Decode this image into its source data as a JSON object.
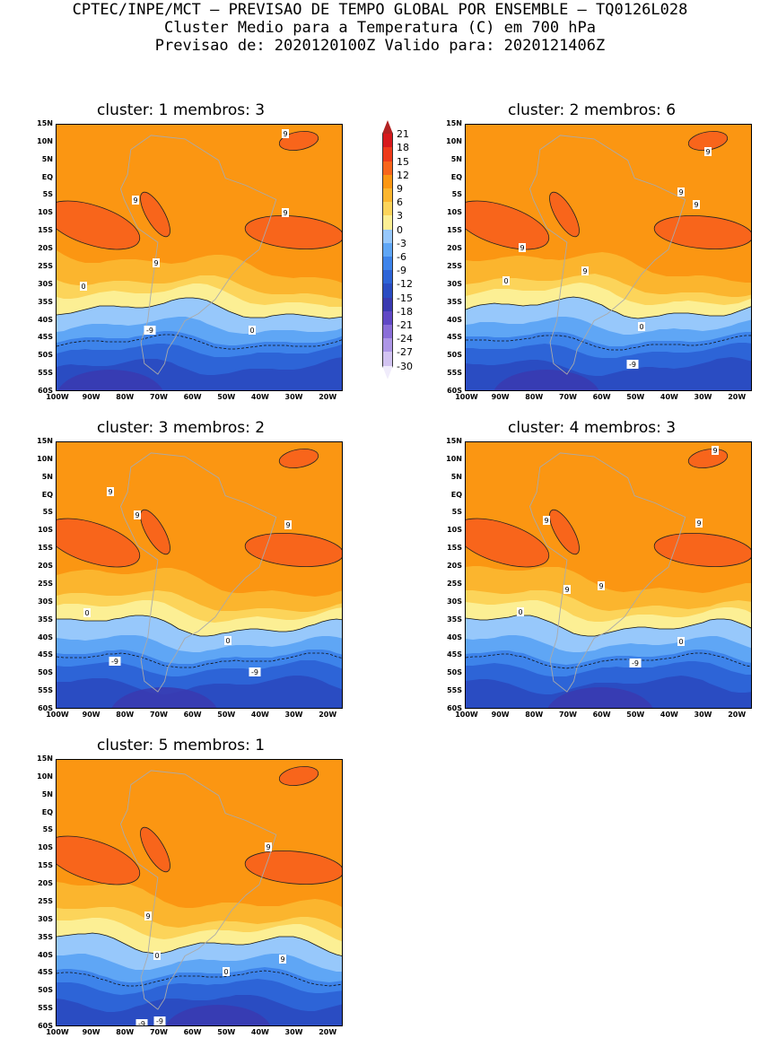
{
  "header": {
    "line1": "CPTEC/INPE/MCT — PREVISAO DE TEMPO GLOBAL POR ENSEMBLE — TQ0126L028",
    "line2": "Cluster Medio para a Temperatura (C) em 700 hPa",
    "line3": "Previsao de: 2020120100Z   Valido para: 2020121406Z"
  },
  "axes": {
    "lat_labels": [
      "15N",
      "10N",
      "5N",
      "EQ",
      "5S",
      "10S",
      "15S",
      "20S",
      "25S",
      "30S",
      "35S",
      "40S",
      "45S",
      "50S",
      "55S",
      "60S"
    ],
    "lon_labels": [
      "100W",
      "90W",
      "80W",
      "70W",
      "60W",
      "50W",
      "40W",
      "30W",
      "20W"
    ]
  },
  "colorbar": {
    "labels": [
      "21",
      "18",
      "15",
      "12",
      "9",
      "6",
      "3",
      "0",
      "-3",
      "-6",
      "-9",
      "-12",
      "-15",
      "-18",
      "-21",
      "-24",
      "-27",
      "-30"
    ],
    "colors": [
      "#b22222",
      "#d7191c",
      "#ee3a1a",
      "#f8651b",
      "#fb9612",
      "#fbb52e",
      "#fcd45a",
      "#fcef94",
      "#97c8fb",
      "#5fa6f5",
      "#3d83ea",
      "#2d64d7",
      "#2a4cc2",
      "#3a3ab0",
      "#6048c5",
      "#8a6ed8",
      "#ad96e6",
      "#d2c3f1",
      "#f0ecfb"
    ]
  },
  "panels": [
    {
      "title": "cluster: 1   membros: 3",
      "labels": [
        "9",
        "9",
        "9",
        "9",
        "0",
        "0",
        "-9"
      ]
    },
    {
      "title": "cluster: 2   membros: 6",
      "labels": [
        "9",
        "9",
        "9",
        "9",
        "9",
        "0",
        "0",
        "-9"
      ]
    },
    {
      "title": "cluster: 3   membros: 2",
      "labels": [
        "9",
        "9",
        "9",
        "0",
        "0",
        "-9",
        "-9"
      ]
    },
    {
      "title": "cluster: 4   membros: 3",
      "labels": [
        "9",
        "9",
        "9",
        "9",
        "9",
        "0",
        "0",
        "-9"
      ]
    },
    {
      "title": "cluster: 5   membros: 1",
      "labels": [
        "9",
        "9",
        "9",
        "0",
        "0",
        "-9",
        "-9"
      ]
    }
  ]
}
